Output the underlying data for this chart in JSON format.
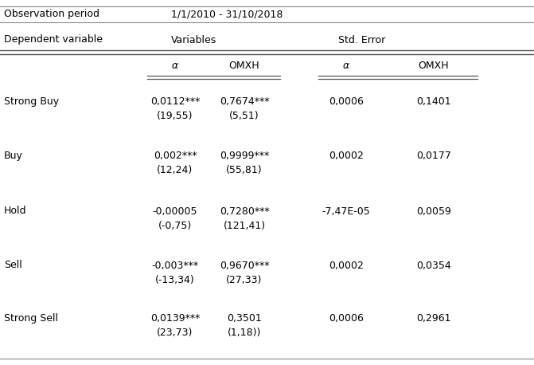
{
  "obs_period_label": "Observation period",
  "obs_period_value": "1/1/2010 - 31/10/2018",
  "rows": [
    {
      "label": "Strong Buy",
      "alpha_val": "0,0112***",
      "alpha_stat": "(19,55)",
      "omxh_val": "0,7674***",
      "omxh_stat": "(5,51)",
      "se_alpha": "0,0006",
      "se_omxh": "0,1401"
    },
    {
      "label": "Buy",
      "alpha_val": "0,002***",
      "alpha_stat": "(12,24)",
      "omxh_val": "0,9999***",
      "omxh_stat": "(55,81)",
      "se_alpha": "0,0002",
      "se_omxh": "0,0177"
    },
    {
      "label": "Hold",
      "alpha_val": "-0,00005",
      "alpha_stat": "(-0,75)",
      "omxh_val": "0,7280***",
      "omxh_stat": "(121,41)",
      "se_alpha": "-7,47E-05",
      "se_omxh": "0,0059"
    },
    {
      "label": "Sell",
      "alpha_val": "-0,003***",
      "alpha_stat": "(-13,34)",
      "omxh_val": "0,9670***",
      "omxh_stat": "(27,33)",
      "se_alpha": "0,0002",
      "se_omxh": "0,0354"
    },
    {
      "label": "Strong Sell",
      "alpha_val": "0,0139***",
      "alpha_stat": "(23,73)",
      "omxh_val": "0,3501",
      "omxh_stat": "(1,18))",
      "se_alpha": "0,0006",
      "se_omxh": "0,2961"
    }
  ],
  "background_color": "#ffffff",
  "text_color": "#000000",
  "font_size": 9.0
}
